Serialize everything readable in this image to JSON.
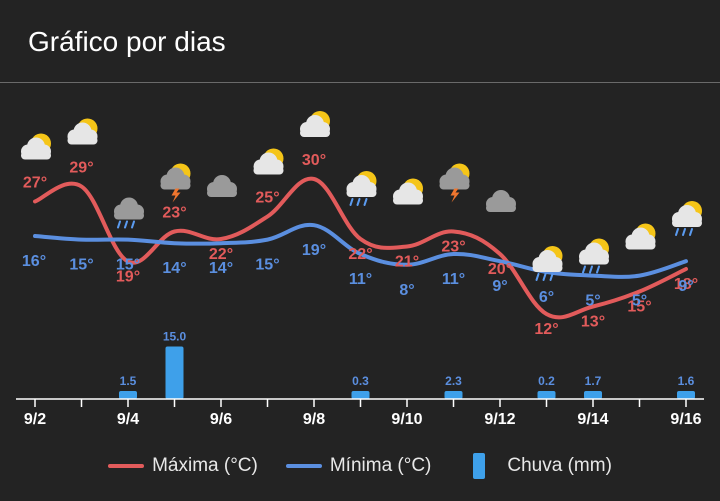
{
  "header": {
    "title": "Gráfico por dias"
  },
  "colors": {
    "max": "#e25b5b",
    "min": "#5b8fe0",
    "rain": "#3ea0ea",
    "axis": "#ffffff",
    "background": "#232323"
  },
  "legend": {
    "max_label": "Máxima (°C)",
    "min_label": "Mínima (°C)",
    "rain_label": "Chuva (mm)"
  },
  "chart_data": {
    "type": "line",
    "x": [
      "9/2",
      "9/3",
      "9/4",
      "9/5",
      "9/6",
      "9/7",
      "9/8",
      "9/9",
      "9/10",
      "9/11",
      "9/12",
      "9/13",
      "9/14",
      "9/15",
      "9/16"
    ],
    "x_tick_labels": [
      "9/2",
      "9/4",
      "9/6",
      "9/8",
      "9/10",
      "9/12",
      "9/14",
      "9/16"
    ],
    "series": [
      {
        "name": "Máxima (°C)",
        "values": [
          27,
          29,
          19,
          23,
          22,
          25,
          30,
          22,
          21,
          23,
          20,
          12,
          13,
          15,
          18
        ]
      },
      {
        "name": "Mínima (°C)",
        "values": [
          16,
          15,
          15,
          14,
          14,
          15,
          19,
          11,
          8,
          11,
          9,
          6,
          5,
          5,
          9
        ]
      },
      {
        "name": "Chuva (mm)",
        "type": "bar",
        "values": [
          0,
          0,
          1.5,
          15.0,
          0,
          0,
          0,
          0.3,
          0,
          2.3,
          0,
          0.2,
          1.7,
          0,
          1.6
        ]
      }
    ],
    "temp_labels_max": [
      "27°",
      "29°",
      "19°",
      "23°",
      "22°",
      "25°",
      "30°",
      "22°",
      "21°",
      "23°",
      "20°",
      "12°",
      "13°",
      "15°",
      "18°"
    ],
    "temp_labels_min": [
      "16°",
      "15°",
      "15°",
      "14°",
      "14°",
      "15°",
      "19°",
      "11°",
      "8°",
      "11°",
      "9°",
      "6°",
      "5°",
      "5°",
      "9°"
    ],
    "rain_labels": [
      "",
      "",
      "1.5",
      "15.0",
      "",
      "",
      "",
      "0.3",
      "",
      "2.3",
      "",
      "0.2",
      "1.7",
      "",
      "1.6"
    ],
    "icons": [
      "partly-cloudy-icon",
      "partly-cloudy-icon",
      "rain-cloud-icon",
      "thunderstorm-sun-icon",
      "cloudy-icon",
      "partly-cloudy-icon",
      "partly-cloudy-icon",
      "rain-sun-icon",
      "partly-cloudy-icon",
      "thunderstorm-sun-icon",
      "cloudy-icon",
      "rain-sun-icon",
      "rain-sun-icon",
      "partly-cloudy-icon",
      "rain-sun-icon"
    ],
    "legend_position": "bottom",
    "grid": false
  }
}
